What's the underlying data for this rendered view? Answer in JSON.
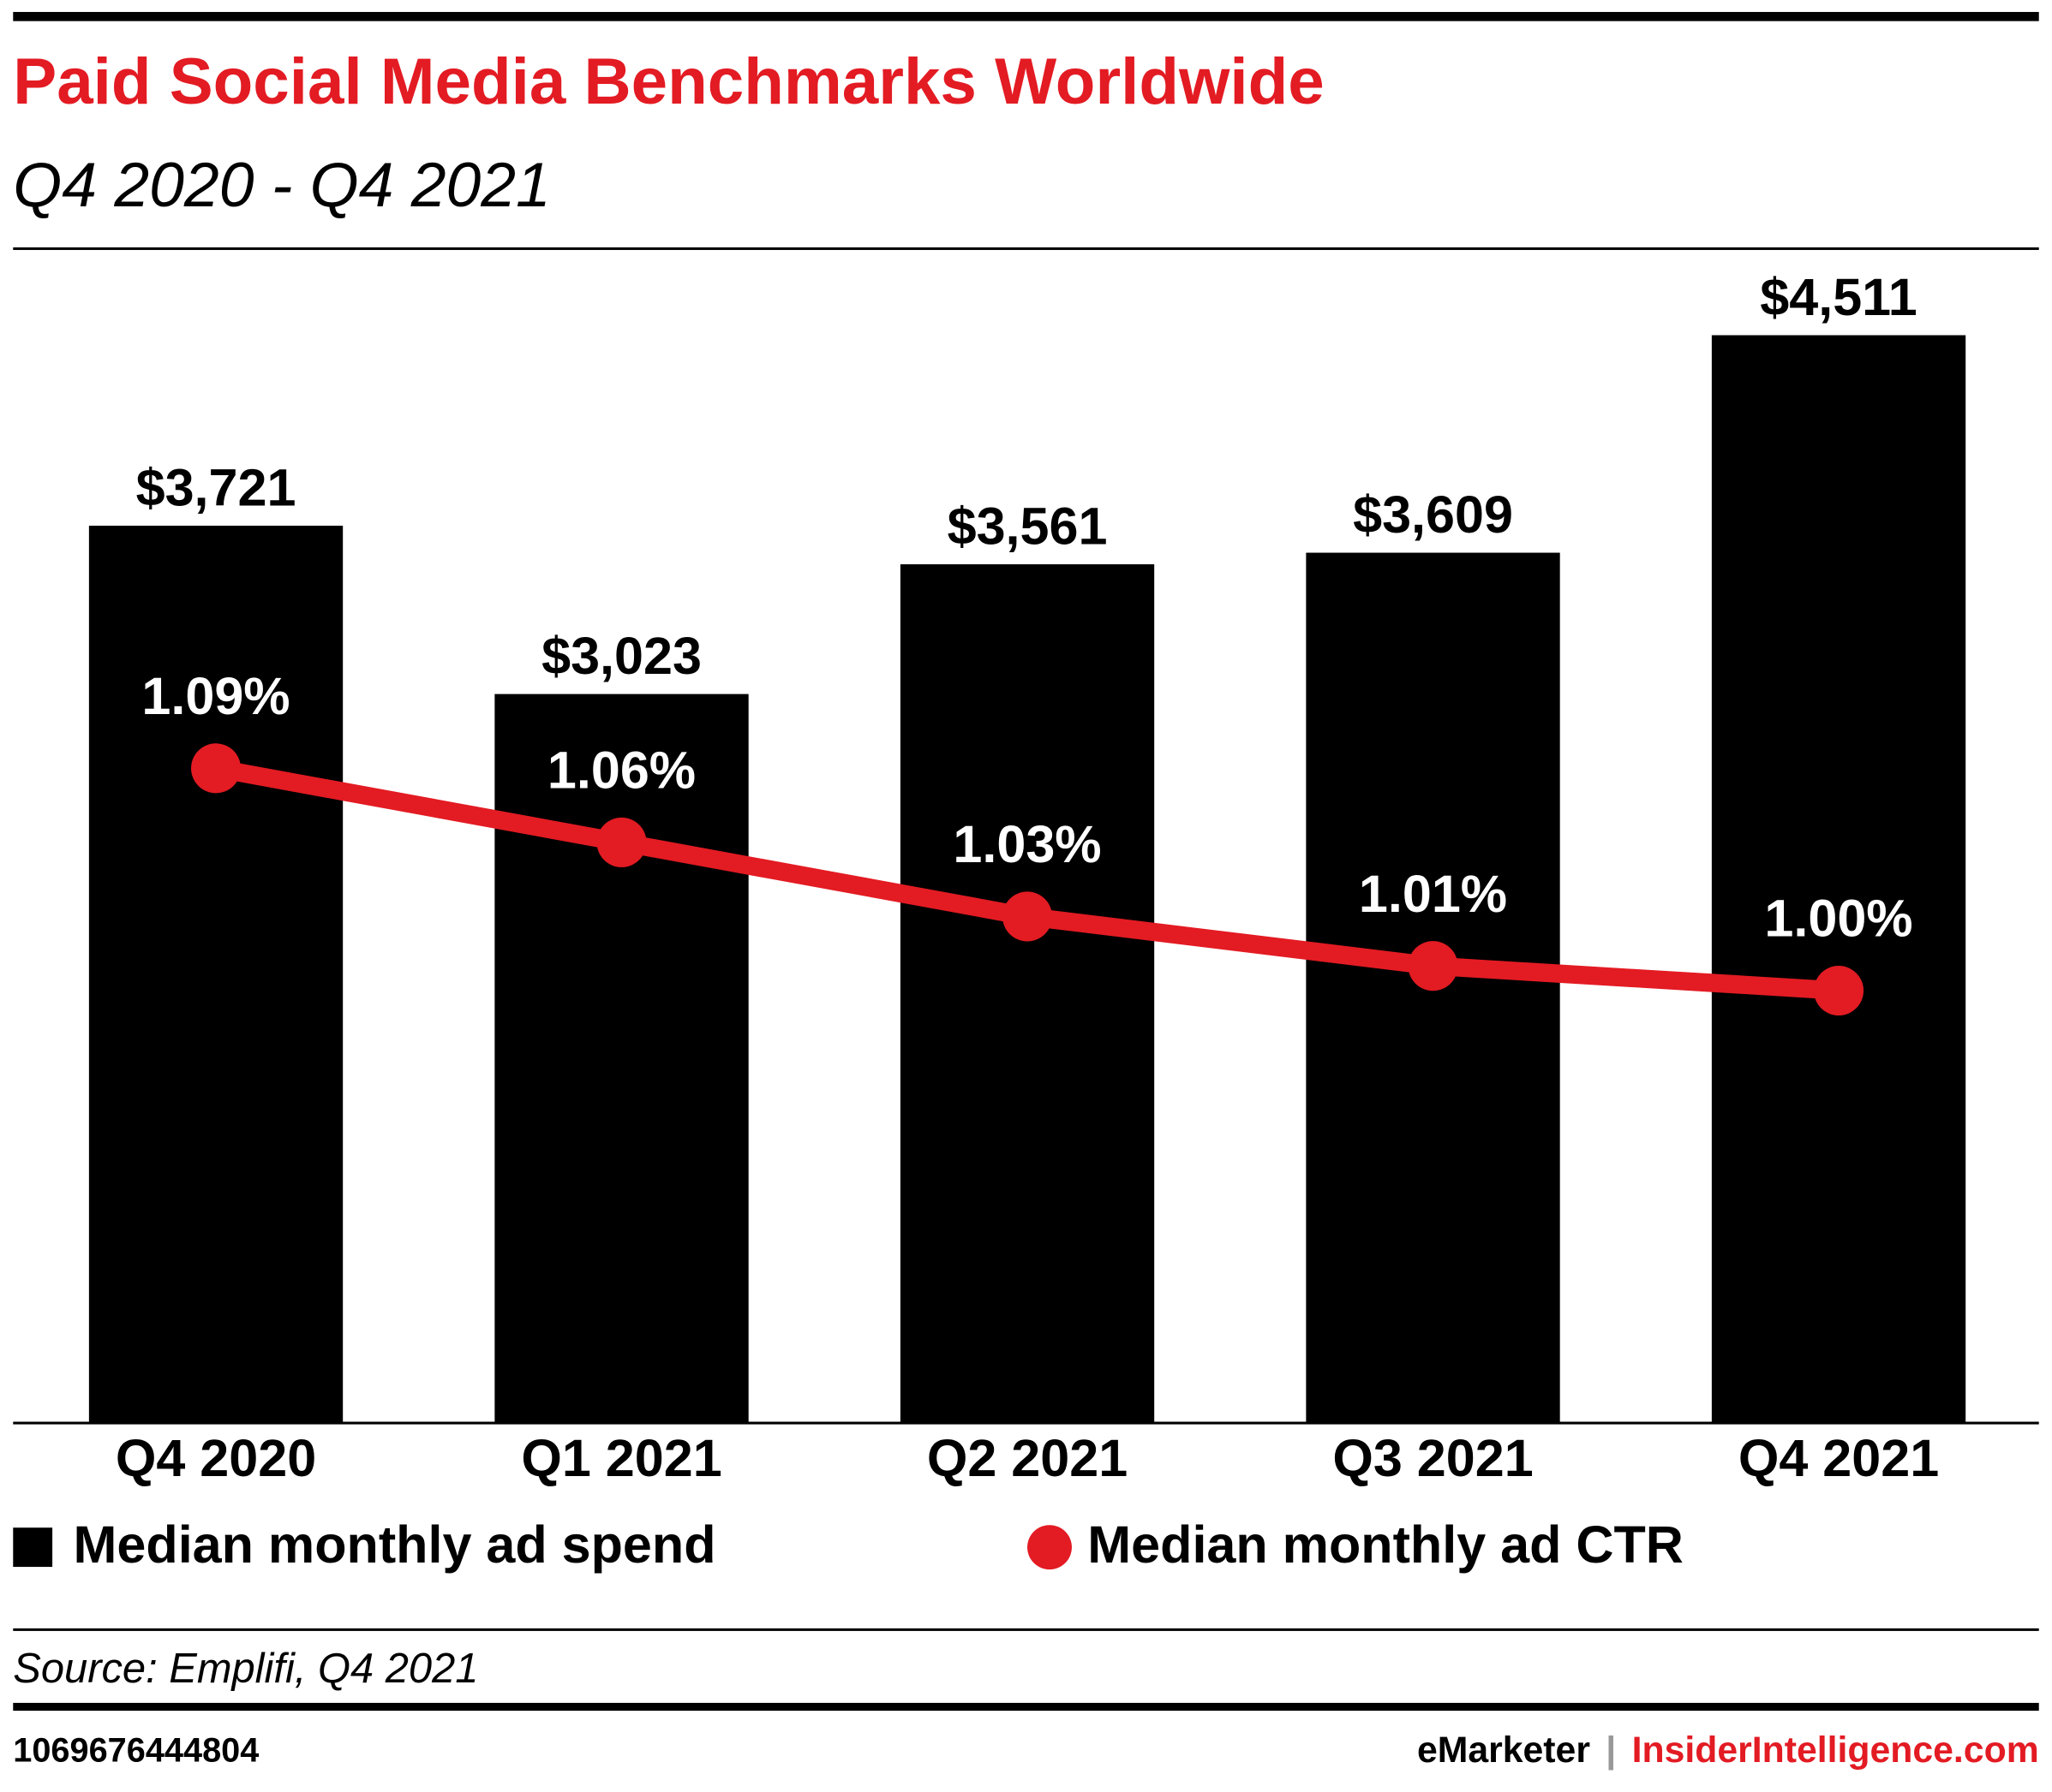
{
  "chart_data": {
    "type": "bar",
    "title": "Paid Social Media Benchmarks Worldwide",
    "subtitle": "Q4 2020 - Q4 2021",
    "categories": [
      "Q4 2020",
      "Q1 2021",
      "Q2 2021",
      "Q3 2021",
      "Q4 2021"
    ],
    "series": [
      {
        "name": "Median monthly ad spend",
        "type": "bar",
        "color": "#000000",
        "values": [
          3721,
          3023,
          3561,
          3609,
          4511
        ],
        "value_labels": [
          "$3,721",
          "$3,023",
          "$3,561",
          "$3,609",
          "$4,511"
        ]
      },
      {
        "name": "Median monthly ad CTR",
        "type": "line",
        "axis": "y2",
        "color": "#e31b23",
        "values": [
          1.09,
          1.06,
          1.03,
          1.01,
          1.0
        ],
        "value_labels": [
          "1.09%",
          "1.06%",
          "1.03%",
          "1.01%",
          "1.00%"
        ]
      }
    ],
    "ylim": [
      0,
      5000
    ],
    "y2lim": [
      0.825,
      1.313
    ]
  },
  "source": "Source: Emplifi, Q4 2021",
  "footer": {
    "id": "1069676444804",
    "brand": "eMarketer",
    "separator": "|",
    "site": "InsiderIntelligence.com"
  }
}
